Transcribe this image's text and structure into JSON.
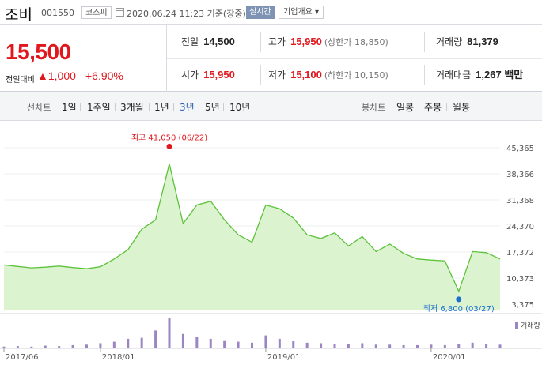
{
  "header": {
    "stock_name": "조비",
    "stock_code": "001550",
    "market": "코스피",
    "datetime": "2020.06.24 11:23 기준(장중)",
    "realtime_label": "실시간",
    "company_info_label": "기업개요 ▾"
  },
  "quote": {
    "price": "15,500",
    "change_label": "전일대비",
    "change_value": "▲1,000",
    "change_pct": "+6.90%",
    "prev_close_label": "전일",
    "prev_close": "14,500",
    "high_label": "고가",
    "high": "15,950",
    "upper_limit": "(상한가 18,850)",
    "volume_label": "거래량",
    "volume": "81,379",
    "open_label": "시가",
    "open": "15,950",
    "low_label": "저가",
    "low": "15,100",
    "lower_limit": "(하한가 10,150)",
    "turnover_label": "거래대금",
    "turnover": "1,267 백만"
  },
  "toolbar": {
    "line_chart_label": "선차트",
    "periods": [
      "1일",
      "1주일",
      "3개월",
      "1년",
      "3년",
      "5년",
      "10년"
    ],
    "active_period": "3년",
    "candle_chart_label": "봉차트",
    "candle_periods": [
      "일봉",
      "주봉",
      "월봉"
    ]
  },
  "colors": {
    "up": "#e0181e",
    "down": "#1b6fd0",
    "line": "#5cc23a",
    "fill": "#dcf3cf",
    "active": "#2a5db0"
  },
  "chart_data": {
    "type": "area",
    "y_ticks": [
      "45,365",
      "38,366",
      "31,368",
      "24,370",
      "17,372",
      "10,373",
      "3,375"
    ],
    "ylim": [
      3375,
      45365
    ],
    "x_ticks": [
      "2017/06",
      "2018/01",
      "2019/01",
      "2020/01"
    ],
    "max_label": "최고 41,050 (06/22)",
    "min_label": "최저 6,800 (03/27)",
    "volume_label": "거래량",
    "series": [
      {
        "x": [
          "2017/06",
          "2017/07",
          "2017/08",
          "2017/09",
          "2017/10",
          "2017/11",
          "2017/12",
          "2018/01",
          "2018/02",
          "2018/03",
          "2018/04",
          "2018/05",
          "2018/06",
          "2018/07",
          "2018/08",
          "2018/09",
          "2018/10",
          "2018/11",
          "2018/12",
          "2019/01",
          "2019/02",
          "2019/03",
          "2019/04",
          "2019/05",
          "2019/06",
          "2019/07",
          "2019/08",
          "2019/09",
          "2019/10",
          "2019/11",
          "2019/12",
          "2020/01",
          "2020/02",
          "2020/03",
          "2020/04",
          "2020/05",
          "2020/06"
        ],
        "values": [
          13900,
          13500,
          13100,
          13300,
          13600,
          13200,
          12900,
          13400,
          15500,
          18000,
          23500,
          26000,
          41050,
          25000,
          30000,
          31000,
          26000,
          22000,
          20000,
          30000,
          29000,
          26500,
          22000,
          21000,
          22500,
          19000,
          21500,
          17500,
          19500,
          17000,
          15500,
          15200,
          15000,
          6800,
          17500,
          17200,
          15500
        ]
      }
    ],
    "volume_marks": [
      2,
      3,
      2,
      4,
      3,
      5,
      6,
      9,
      12,
      18,
      20,
      35,
      60,
      28,
      22,
      18,
      15,
      12,
      10,
      25,
      18,
      14,
      10,
      9,
      8,
      7,
      9,
      6,
      6,
      5,
      5,
      6,
      5,
      8,
      10,
      7,
      6
    ]
  }
}
